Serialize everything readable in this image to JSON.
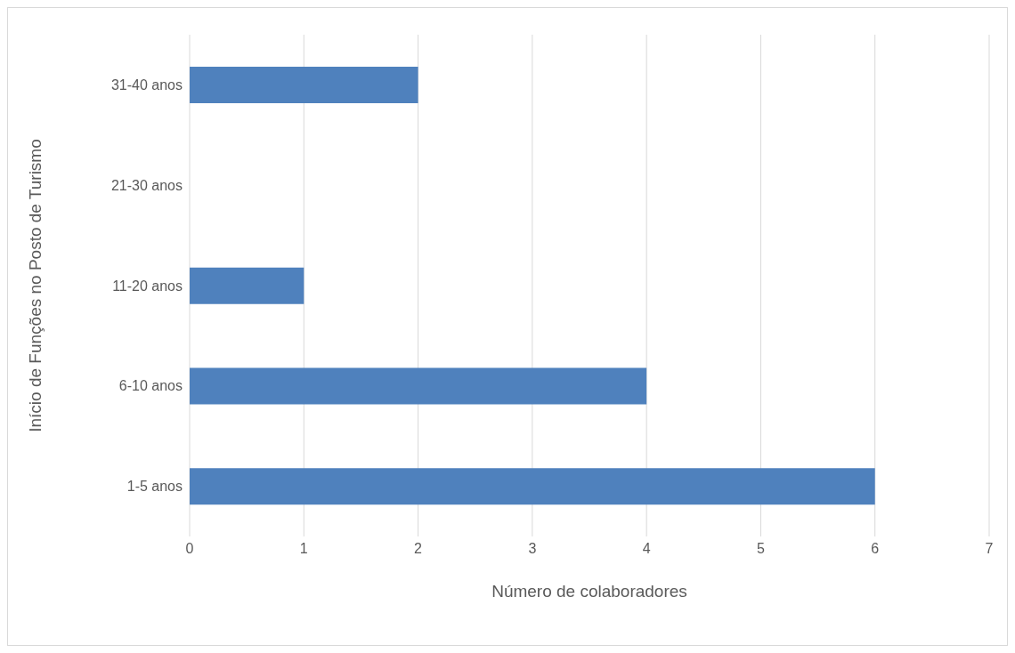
{
  "chart_data": {
    "type": "bar",
    "orientation": "horizontal",
    "xlabel": "Número de colaboradores",
    "ylabel": "Início de Funções no Posto de Turismo",
    "categories": [
      "31-40 anos",
      "21-30 anos",
      "11-20 anos",
      "6-10 anos",
      "1-5 anos"
    ],
    "values": [
      2,
      0,
      1,
      4,
      6
    ],
    "color": "#4f81bd",
    "xlim": [
      0,
      7
    ],
    "xticks": [
      0,
      1,
      2,
      3,
      4,
      5,
      6,
      7
    ],
    "grid": "x"
  }
}
